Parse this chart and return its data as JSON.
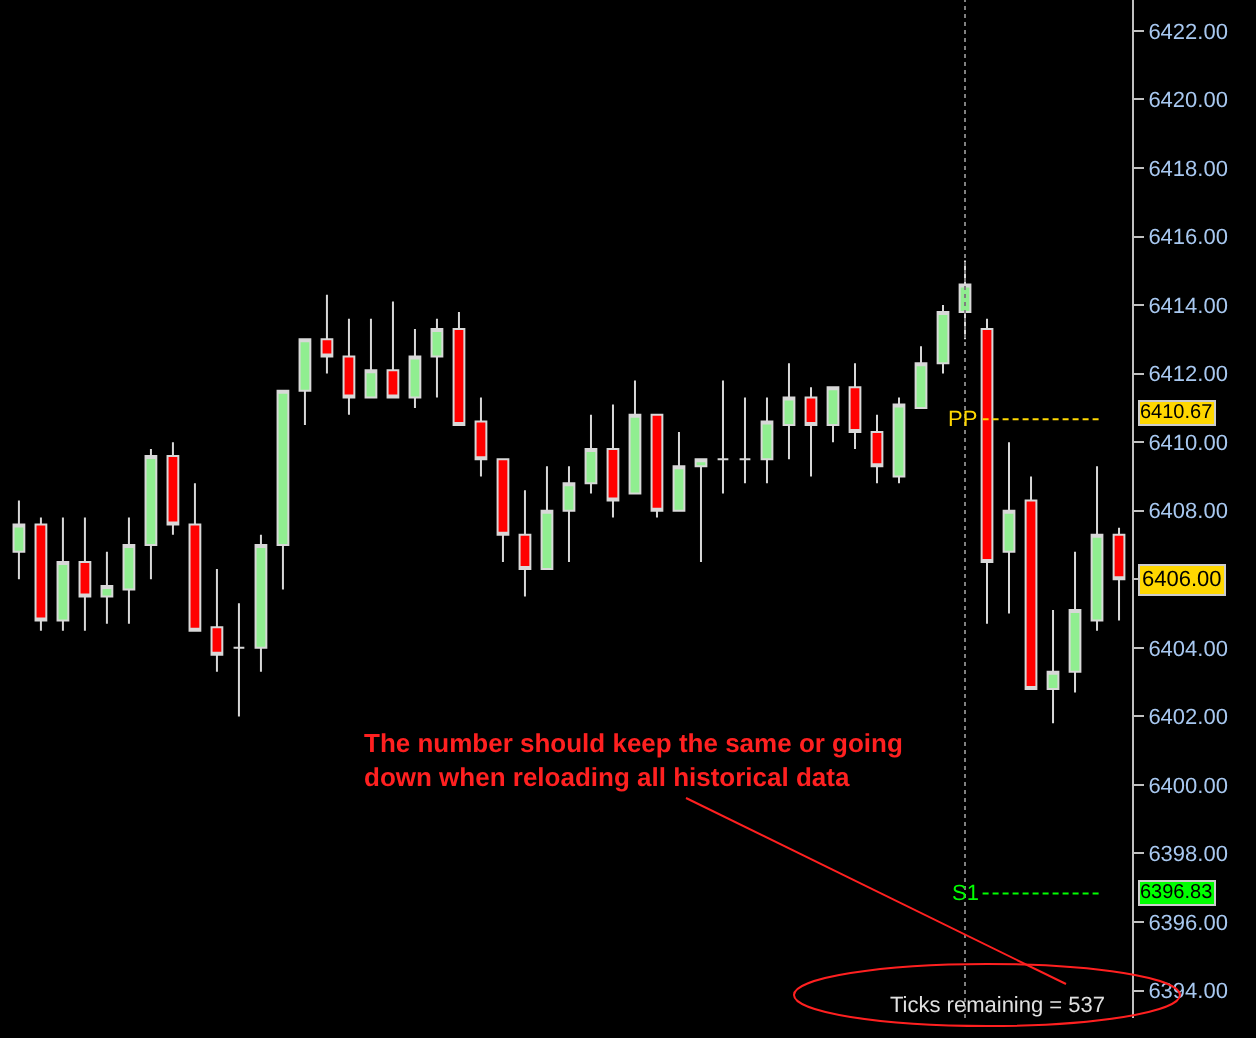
{
  "chart_data": {
    "type": "candlestick",
    "categories": [
      null,
      null,
      null,
      null,
      null,
      null,
      null,
      null,
      null,
      null,
      null,
      null,
      null,
      null,
      null,
      null,
      null,
      null,
      null,
      null,
      null,
      null,
      null,
      null,
      null,
      null,
      null,
      null,
      null,
      null,
      null,
      null,
      null,
      null,
      null,
      null,
      null,
      null,
      null,
      null,
      null,
      null,
      null,
      null,
      null,
      null,
      null,
      null,
      null,
      null,
      null
    ],
    "ohlc": [
      [
        6406.8,
        6408.3,
        6406.0,
        6407.6
      ],
      [
        6407.6,
        6407.8,
        6404.5,
        6404.8
      ],
      [
        6404.8,
        6407.8,
        6404.5,
        6406.5
      ],
      [
        6406.5,
        6407.8,
        6404.5,
        6405.5
      ],
      [
        6405.5,
        6406.8,
        6404.7,
        6405.8
      ],
      [
        6405.7,
        6407.8,
        6404.7,
        6407.0
      ],
      [
        6407.0,
        6409.8,
        6406.0,
        6409.6
      ],
      [
        6409.6,
        6410.0,
        6407.3,
        6407.6
      ],
      [
        6407.6,
        6408.8,
        6404.5,
        6404.5
      ],
      [
        6404.6,
        6406.3,
        6403.3,
        6403.8
      ],
      [
        6404.0,
        6405.3,
        6402.0,
        6404.0
      ],
      [
        6404.0,
        6407.3,
        6403.3,
        6407.0
      ],
      [
        6407.0,
        6411.5,
        6405.7,
        6411.5
      ],
      [
        6411.5,
        6413.0,
        6410.5,
        6413.0
      ],
      [
        6413.0,
        6414.3,
        6412.0,
        6412.5
      ],
      [
        6412.5,
        6413.6,
        6410.8,
        6411.3
      ],
      [
        6411.3,
        6413.6,
        6411.3,
        6412.1
      ],
      [
        6412.1,
        6414.1,
        6411.3,
        6411.3
      ],
      [
        6411.3,
        6413.3,
        6411.0,
        6412.5
      ],
      [
        6412.5,
        6413.6,
        6411.3,
        6413.3
      ],
      [
        6413.3,
        6413.8,
        6410.5,
        6410.5
      ],
      [
        6410.6,
        6411.3,
        6409.0,
        6409.5
      ],
      [
        6409.5,
        6409.5,
        6406.5,
        6407.3
      ],
      [
        6407.3,
        6408.6,
        6405.5,
        6406.3
      ],
      [
        6406.3,
        6409.3,
        6406.3,
        6408.0
      ],
      [
        6408.0,
        6409.3,
        6406.5,
        6408.8
      ],
      [
        6408.8,
        6410.8,
        6408.5,
        6409.8
      ],
      [
        6409.8,
        6411.1,
        6407.8,
        6408.3
      ],
      [
        6408.5,
        6411.8,
        6408.5,
        6410.8
      ],
      [
        6410.8,
        6410.8,
        6407.8,
        6408.0
      ],
      [
        6408.0,
        6410.3,
        6408.0,
        6409.3
      ],
      [
        6409.3,
        6409.5,
        6406.5,
        6409.5
      ],
      [
        6409.5,
        6411.8,
        6408.5,
        6409.5
      ],
      [
        6409.5,
        6411.3,
        6408.8,
        6409.5
      ],
      [
        6409.5,
        6411.3,
        6408.8,
        6410.6
      ],
      [
        6410.5,
        6412.3,
        6409.5,
        6411.3
      ],
      [
        6411.3,
        6411.6,
        6409.0,
        6410.5
      ],
      [
        6410.5,
        6411.6,
        6410.0,
        6411.6
      ],
      [
        6411.6,
        6412.3,
        6409.8,
        6410.3
      ],
      [
        6410.3,
        6410.8,
        6408.8,
        6409.3
      ],
      [
        6409.0,
        6411.3,
        6408.8,
        6411.1
      ],
      [
        6411.0,
        6412.8,
        6411.0,
        6412.3
      ],
      [
        6412.3,
        6414.0,
        6412.0,
        6413.8
      ],
      [
        6413.8,
        6415.3,
        6413.0,
        6414.6
      ],
      [
        6413.3,
        6413.6,
        6404.7,
        6406.5
      ],
      [
        6406.8,
        6410.0,
        6405.0,
        6408.0
      ],
      [
        6408.3,
        6409.0,
        6402.8,
        6402.8
      ],
      [
        6402.8,
        6405.1,
        6401.8,
        6403.3
      ],
      [
        6403.3,
        6406.8,
        6402.7,
        6405.1
      ],
      [
        6404.8,
        6409.3,
        6404.5,
        6407.3
      ],
      [
        6407.3,
        6407.5,
        6404.8,
        6406.0
      ]
    ],
    "colors": [
      "#90ee90",
      "#ff0000",
      "#90ee90",
      "#ff0000",
      "#90ee90",
      "#90ee90",
      "#90ee90",
      "#ff0000",
      "#ff0000",
      "#ff0000",
      "#d8d8d8",
      "#90ee90",
      "#90ee90",
      "#90ee90",
      "#ff0000",
      "#ff0000",
      "#90ee90",
      "#ff0000",
      "#90ee90",
      "#90ee90",
      "#ff0000",
      "#ff0000",
      "#ff0000",
      "#ff0000",
      "#90ee90",
      "#90ee90",
      "#90ee90",
      "#ff0000",
      "#90ee90",
      "#ff0000",
      "#90ee90",
      "#90ee90",
      "#d8d8d8",
      "#d8d8d8",
      "#90ee90",
      "#90ee90",
      "#ff0000",
      "#90ee90",
      "#ff0000",
      "#ff0000",
      "#90ee90",
      "#90ee90",
      "#90ee90",
      "#90ee90",
      "#ff0000",
      "#90ee90",
      "#ff0000",
      "#90ee90",
      "#90ee90",
      "#90ee90",
      "#ff0000"
    ],
    "ylim": [
      6393.2,
      6422.9
    ],
    "yticks": [
      {
        "value": 6394,
        "label": "6394.00"
      },
      {
        "value": 6396,
        "label": "6396.00"
      },
      {
        "value": 6398,
        "label": "6398.00"
      },
      {
        "value": 6400,
        "label": "6400.00"
      },
      {
        "value": 6402,
        "label": "6402.00"
      },
      {
        "value": 6404,
        "label": "6404.00"
      },
      {
        "value": 6406,
        "label": null
      },
      {
        "value": 6408,
        "label": "6408.00"
      },
      {
        "value": 6410,
        "label": "6410.00"
      },
      {
        "value": 6412,
        "label": "6412.00"
      },
      {
        "value": 6414,
        "label": "6414.00"
      },
      {
        "value": 6416,
        "label": "6416.00"
      },
      {
        "value": 6418,
        "label": "6418.00"
      },
      {
        "value": 6420,
        "label": "6420.00"
      },
      {
        "value": 6422,
        "label": "6422.00"
      }
    ],
    "ref_lines": [
      {
        "axis": "y",
        "value": 6410.67,
        "label": "PP",
        "color": "#ffd700",
        "line_style": "dashed"
      },
      {
        "axis": "y",
        "value": 6396.83,
        "label": "S1",
        "color": "#00ff00",
        "line_style": "dashed"
      }
    ],
    "annotations": [
      "The number should keep the same or going\ndown when reloading all historical data",
      "Ticks remaining = 537",
      "6410.67",
      "6406.00",
      "6396.83"
    ]
  }
}
